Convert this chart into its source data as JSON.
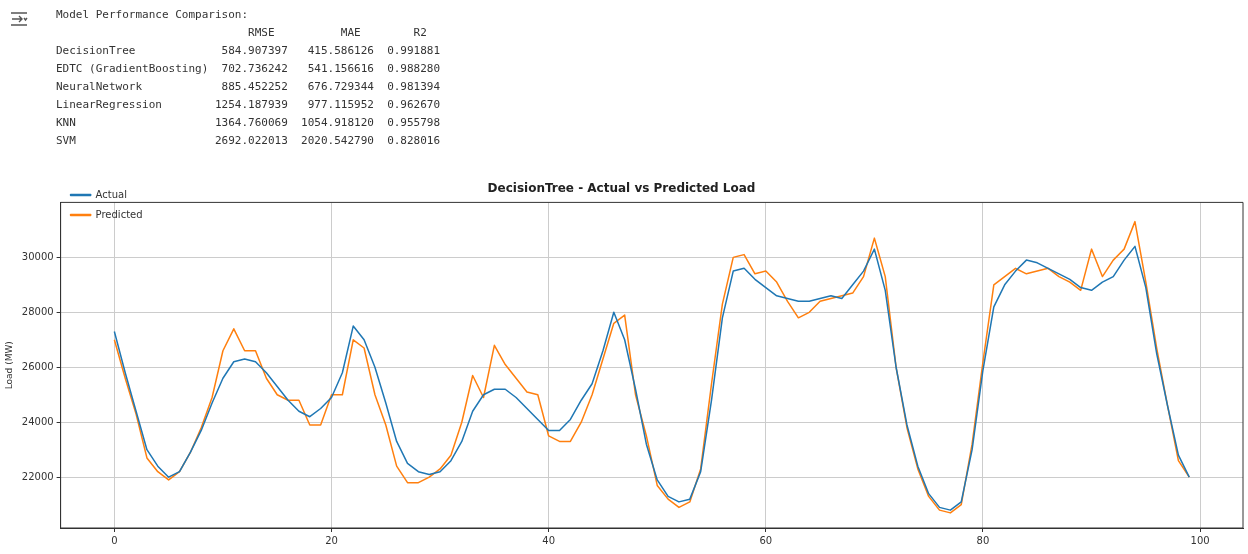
{
  "chart_data": {
    "type": "line",
    "title": "DecisionTree - Actual vs Predicted Load",
    "ylabel": "Load (MW)",
    "annotations": [
      "Model Performance Comparison:",
      "                             RMSE          MAE        R2",
      "DecisionTree             584.907397   415.586126  0.991881",
      "EDTC (GradientBoosting)  702.736242   541.156616  0.988280",
      "NeuralNetwork            885.452252   676.729344  0.981394",
      "LinearRegression        1254.187939   977.115952  0.962670",
      "KNN                     1364.760069  1054.918120  0.955798",
      "SVM                     2692.022013  2020.542790  0.828016"
    ],
    "x": [
      0,
      1,
      2,
      3,
      4,
      5,
      6,
      7,
      8,
      9,
      10,
      11,
      12,
      13,
      14,
      15,
      16,
      17,
      18,
      19,
      20,
      21,
      22,
      23,
      24,
      25,
      26,
      27,
      28,
      29,
      30,
      31,
      32,
      33,
      34,
      35,
      36,
      37,
      38,
      39,
      40,
      41,
      42,
      43,
      44,
      45,
      46,
      47,
      48,
      49,
      50,
      51,
      52,
      53,
      54,
      55,
      56,
      57,
      58,
      59,
      60,
      61,
      62,
      63,
      64,
      65,
      66,
      67,
      68,
      69,
      70,
      71,
      72,
      73,
      74,
      75,
      76,
      77,
      78,
      79,
      80,
      81,
      82,
      83,
      84,
      85,
      86,
      87,
      88,
      89,
      90,
      91,
      92,
      93,
      94,
      95,
      96,
      97,
      98,
      99
    ],
    "series": [
      {
        "name": "Actual",
        "color": "#1f77b4",
        "values": [
          27300,
          25800,
          24400,
          23000,
          22400,
          22000,
          22200,
          22900,
          23700,
          24700,
          25600,
          26200,
          26300,
          26200,
          25800,
          25300,
          24800,
          24400,
          24200,
          24500,
          24900,
          25800,
          27500,
          27000,
          26000,
          24700,
          23300,
          22500,
          22200,
          22100,
          22200,
          22600,
          23300,
          24400,
          25000,
          25200,
          25200,
          24900,
          24500,
          24100,
          23700,
          23700,
          24100,
          24800,
          25400,
          26600,
          28000,
          27000,
          25200,
          23200,
          21900,
          21300,
          21100,
          21200,
          22200,
          24800,
          27800,
          29500,
          29600,
          29200,
          28900,
          28600,
          28500,
          28400,
          28400,
          28500,
          28600,
          28500,
          29000,
          29500,
          30300,
          28800,
          26000,
          23900,
          22400,
          21400,
          20900,
          20800,
          21100,
          23000,
          25900,
          28200,
          29000,
          29500,
          29900,
          29800,
          29600,
          29400,
          29200,
          28900,
          28800,
          29100,
          29300,
          29900,
          30400,
          28900,
          26500,
          24600,
          22800,
          22000
        ]
      },
      {
        "name": "Predicted",
        "color": "#ff7f0e",
        "values": [
          27000,
          25600,
          24300,
          22700,
          22200,
          21900,
          22200,
          22900,
          23800,
          24900,
          26600,
          27400,
          26600,
          26600,
          25600,
          25000,
          24800,
          24800,
          23900,
          23900,
          25000,
          25000,
          27000,
          26700,
          25000,
          23900,
          22400,
          21800,
          21800,
          22000,
          22300,
          22800,
          24000,
          25700,
          24900,
          26800,
          26100,
          25600,
          25100,
          25000,
          23500,
          23300,
          23300,
          24000,
          25000,
          26300,
          27600,
          27900,
          25000,
          23500,
          21700,
          21200,
          20900,
          21100,
          22300,
          25400,
          28300,
          30000,
          30100,
          29400,
          29500,
          29100,
          28400,
          27800,
          28000,
          28400,
          28500,
          28600,
          28700,
          29300,
          30700,
          29300,
          26000,
          23800,
          22300,
          21300,
          20800,
          20700,
          21000,
          23200,
          26200,
          29000,
          29300,
          29600,
          29400,
          29500,
          29600,
          29300,
          29100,
          28800,
          30300,
          29300,
          29900,
          30300,
          31300,
          29100,
          26700,
          24600,
          22600,
          22000
        ]
      }
    ],
    "xlim": [
      -4.95,
      103.95
    ],
    "xticks": [
      0,
      20,
      40,
      60,
      80,
      100
    ],
    "ylim": [
      20150,
      32000
    ],
    "yticks": [
      22000,
      24000,
      26000,
      28000,
      30000
    ],
    "grid": true,
    "legend": "top left",
    "marker": "none",
    "line_style": "solid"
  }
}
